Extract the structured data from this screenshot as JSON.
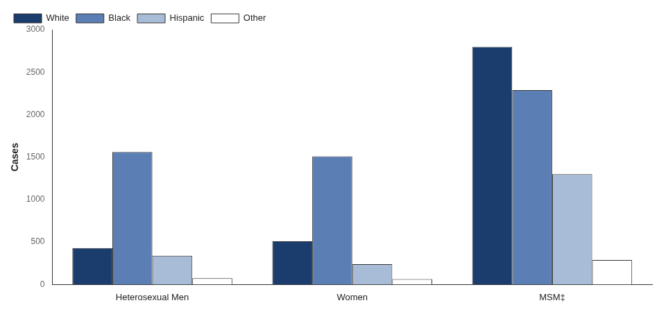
{
  "chart_data": {
    "type": "bar",
    "categories": [
      "Heterosexual Men",
      "Women",
      "MSM‡"
    ],
    "series": [
      {
        "name": "White",
        "color": "#1a3d6e",
        "values": [
          430,
          510,
          2800
        ]
      },
      {
        "name": "Black",
        "color": "#5b7fb5",
        "values": [
          1560,
          1510,
          2290
        ]
      },
      {
        "name": "Hispanic",
        "color": "#a8bcd8",
        "values": [
          340,
          240,
          1300
        ]
      },
      {
        "name": "Other",
        "color": "#ffffff",
        "values": [
          75,
          65,
          290
        ]
      }
    ],
    "ylabel": "Cases",
    "ylim": [
      0,
      3000
    ],
    "yticks": [
      0,
      500,
      1000,
      1500,
      2000,
      2500,
      3000
    ],
    "grid": false,
    "legend": "upper left"
  }
}
